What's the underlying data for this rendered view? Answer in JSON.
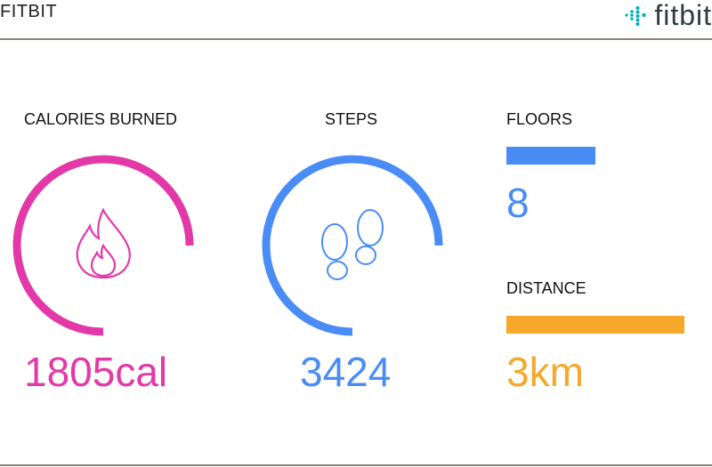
{
  "header": {
    "title": "FITBIT",
    "logo_text": "fitbit"
  },
  "colors": {
    "calories": "#e339a8",
    "steps": "#4a8cf6",
    "floors": "#4a8cf6",
    "distance": "#f5a82a",
    "divider": "#8b8178"
  },
  "calories": {
    "label": "CALORIES BURNED",
    "value": "1805cal",
    "progress": 0.75,
    "icon": "flame-icon"
  },
  "steps": {
    "label": "STEPS",
    "value": "3424",
    "progress": 0.75,
    "icon": "footprints-icon"
  },
  "floors": {
    "label": "FLOORS",
    "value": "8",
    "progress": 0.5
  },
  "distance": {
    "label": "DISTANCE",
    "value": "3km",
    "progress": 1.0
  }
}
